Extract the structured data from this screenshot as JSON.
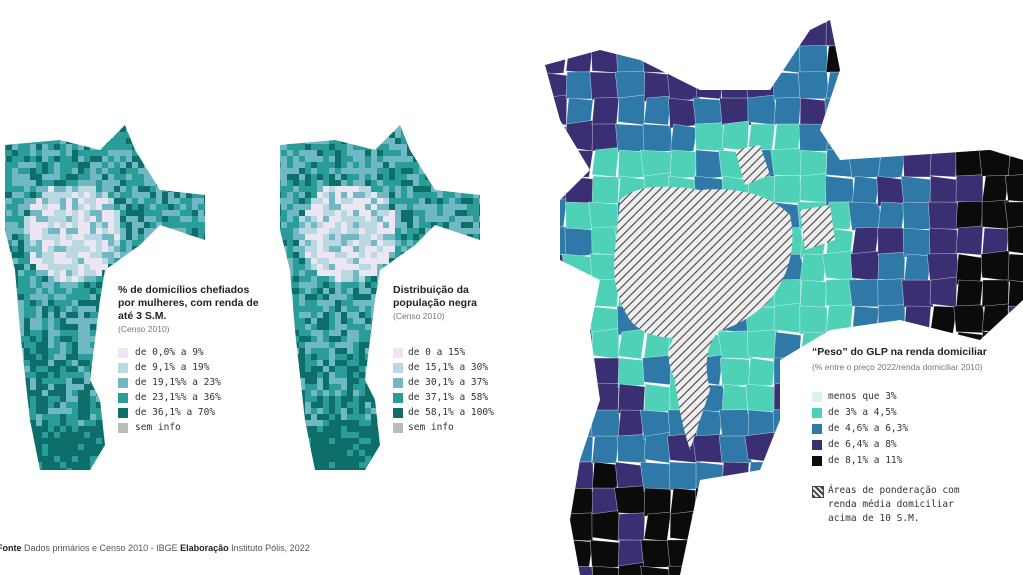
{
  "panels": [
    {
      "title": "% de domicílios chefiados por mulheres, com renda de até 3 S.M.",
      "subtitle": "(Censo 2010)",
      "legend": [
        "de 0,0% a 9%",
        "de 9,1% a 19%",
        "de 19,1%% a 23%",
        "de 23,1%% a 36%",
        "de 36,1% a 70%",
        "sem info"
      ]
    },
    {
      "title": "Distribuição da população negra",
      "subtitle": "(Censo 2010)",
      "legend": [
        "de 0 a 15%",
        "de 15,1% a 30%",
        "de 30,1% a 37%",
        "de 37,1% a 58%",
        "de 58,1% a 100%",
        "sem info"
      ]
    },
    {
      "title": "“Peso” do GLP na renda domiciliar",
      "subtitle": "(% entre o preço 2022/renda domiciliar 2010)",
      "legend": [
        "menos que 3%",
        "de 3% a 4,5%",
        "de 4,6% a 6,3%",
        "de 6,4% a 8%",
        "de 8,1% a 11%"
      ],
      "note": "Áreas de ponderação com renda média domiciliar acima de 10 S.M."
    }
  ],
  "footer": {
    "label1": "Fonte",
    "text1": "Dados primários e Censo 2010 - IBGE",
    "label2": "Elaboração",
    "text2": "Instituto Pólis, 2022"
  }
}
